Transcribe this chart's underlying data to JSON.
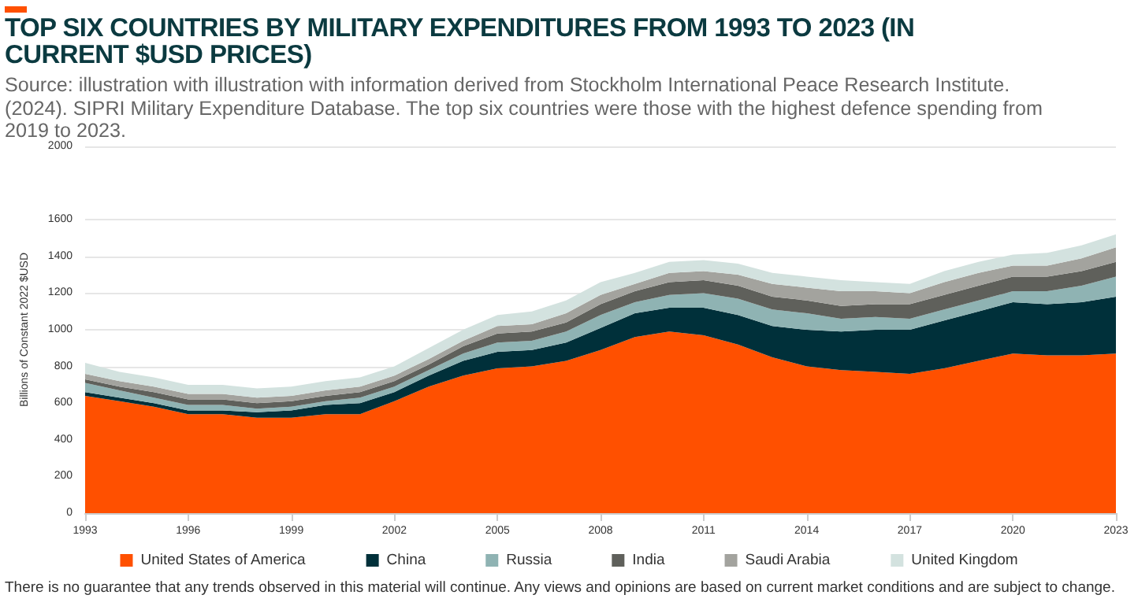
{
  "chart_data": {
    "type": "area",
    "stacked": true,
    "title": "TOP SIX COUNTRIES BY MILITARY EXPENDITURES FROM 1993 TO 2023 (IN CURRENT $USD PRICES)",
    "subtitle": "Source: illustration with illustration with information derived from Stockholm International Peace Research Institute. (2024). SIPRI Military Expenditure Database. The top six countries were those with the highest defence spending  from 2019 to 2023.",
    "ylabel": "Billions of Constant 2022 $USD",
    "annotations": [
      "There is no guarantee that any trends observed in this material will continue. Any views and opinions are based on current market conditions and are subject to change."
    ],
    "x": [
      1993,
      1994,
      1995,
      1996,
      1997,
      1998,
      1999,
      2000,
      2001,
      2002,
      2003,
      2004,
      2005,
      2006,
      2007,
      2008,
      2009,
      2010,
      2011,
      2012,
      2013,
      2014,
      2015,
      2016,
      2017,
      2018,
      2019,
      2020,
      2021,
      2022,
      2023
    ],
    "series": [
      {
        "name": "United States of America",
        "color": "#ff5000",
        "values": [
          640,
          610,
          580,
          540,
          540,
          520,
          520,
          540,
          540,
          610,
          690,
          750,
          790,
          800,
          830,
          890,
          960,
          990,
          970,
          920,
          850,
          800,
          780,
          770,
          760,
          790,
          830,
          870,
          860,
          860,
          870
        ]
      },
      {
        "name": "China",
        "color": "#00303a",
        "values": [
          20,
          20,
          20,
          20,
          20,
          30,
          40,
          50,
          60,
          50,
          60,
          80,
          90,
          90,
          100,
          120,
          130,
          130,
          150,
          160,
          170,
          200,
          210,
          230,
          240,
          260,
          270,
          280,
          280,
          290,
          310
        ]
      },
      {
        "name": "Russia",
        "color": "#8fb3b3",
        "values": [
          50,
          40,
          30,
          30,
          30,
          20,
          20,
          20,
          30,
          30,
          30,
          40,
          50,
          50,
          60,
          70,
          60,
          70,
          80,
          90,
          90,
          90,
          70,
          70,
          60,
          60,
          60,
          60,
          70,
          90,
          110
        ]
      },
      {
        "name": "India",
        "color": "#5f605b",
        "values": [
          20,
          20,
          30,
          30,
          30,
          30,
          30,
          30,
          30,
          30,
          30,
          40,
          50,
          50,
          50,
          60,
          60,
          70,
          70,
          70,
          70,
          70,
          70,
          70,
          80,
          80,
          80,
          80,
          80,
          80,
          80
        ]
      },
      {
        "name": "Saudi Arabia",
        "color": "#a3a39e",
        "values": [
          30,
          30,
          30,
          30,
          30,
          30,
          30,
          30,
          30,
          30,
          30,
          30,
          40,
          40,
          50,
          50,
          40,
          50,
          50,
          60,
          70,
          70,
          80,
          70,
          60,
          70,
          70,
          60,
          60,
          70,
          80
        ]
      },
      {
        "name": "United Kingdom",
        "color": "#d3e2df",
        "values": [
          60,
          50,
          50,
          50,
          50,
          50,
          50,
          50,
          50,
          50,
          60,
          60,
          60,
          70,
          70,
          70,
          60,
          60,
          60,
          60,
          60,
          60,
          60,
          50,
          50,
          60,
          60,
          60,
          70,
          70,
          70
        ]
      }
    ],
    "xlim": [
      1993,
      2023
    ],
    "xticks": [
      1993,
      1996,
      1999,
      2002,
      2005,
      2008,
      2011,
      2014,
      2017,
      2020,
      2023
    ],
    "ylim": [
      0,
      2000
    ],
    "yticks": [
      0,
      200,
      400,
      600,
      800,
      1000,
      1200,
      1400,
      1600,
      2000
    ],
    "grid": "y",
    "legend": "bottom"
  }
}
